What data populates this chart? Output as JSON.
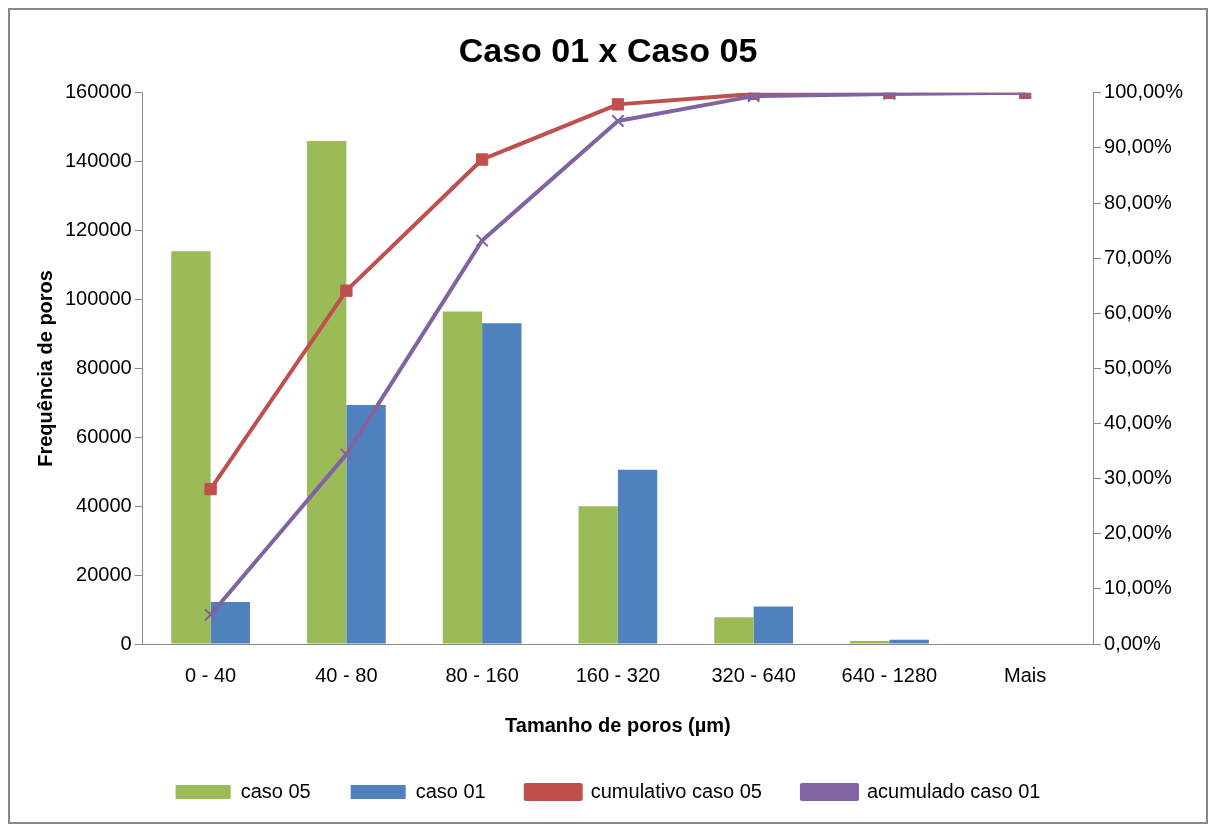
{
  "chart_data": {
    "type": "bar",
    "title": "Caso 01 x Caso 05",
    "xlabel": "Tamanho de poros (µm)",
    "ylabel": "Frequência de poros",
    "categories": [
      "0 - 40",
      "40 - 80",
      "80 - 160",
      "160 - 320",
      "320 - 640",
      "640 - 1280",
      "Mais"
    ],
    "series": [
      {
        "name": "caso 05",
        "color": "#9bbb59",
        "values": [
          114000,
          146000,
          96500,
          40000,
          7800,
          900,
          0
        ]
      },
      {
        "name": "caso 01",
        "color": "#4f81bd",
        "values": [
          12200,
          69400,
          93100,
          50600,
          10900,
          1200,
          0
        ]
      },
      {
        "name": "cumulativo caso 05",
        "type": "line",
        "axis": "y2",
        "marker": "square",
        "color": "#c0504d",
        "values": [
          28.1,
          64.1,
          87.9,
          97.9,
          99.8,
          100,
          100
        ]
      },
      {
        "name": "acumulado caso 01",
        "type": "line",
        "axis": "y2",
        "marker": "cross",
        "color": "#8064a2",
        "values": [
          5.3,
          34.4,
          73.2,
          94.9,
          99.4,
          99.8,
          100
        ]
      }
    ],
    "ylim": [
      0,
      160000
    ],
    "yticks": [
      0,
      20000,
      40000,
      60000,
      80000,
      100000,
      120000,
      140000,
      160000
    ],
    "y2lim": [
      0,
      100
    ],
    "y2ticks": [
      {
        "value": 0,
        "label": "0,00%"
      },
      {
        "value": 10,
        "label": "10,00%"
      },
      {
        "value": 20,
        "label": "20,00%"
      },
      {
        "value": 30,
        "label": "30,00%"
      },
      {
        "value": 40,
        "label": "40,00%"
      },
      {
        "value": 50,
        "label": "50,00%"
      },
      {
        "value": 60,
        "label": "60,00%"
      },
      {
        "value": 70,
        "label": "70,00%"
      },
      {
        "value": 80,
        "label": "80,00%"
      },
      {
        "value": 90,
        "label": "90,00%"
      },
      {
        "value": 100,
        "label": "100,00%"
      }
    ],
    "grid": false,
    "legend": "bottom"
  }
}
